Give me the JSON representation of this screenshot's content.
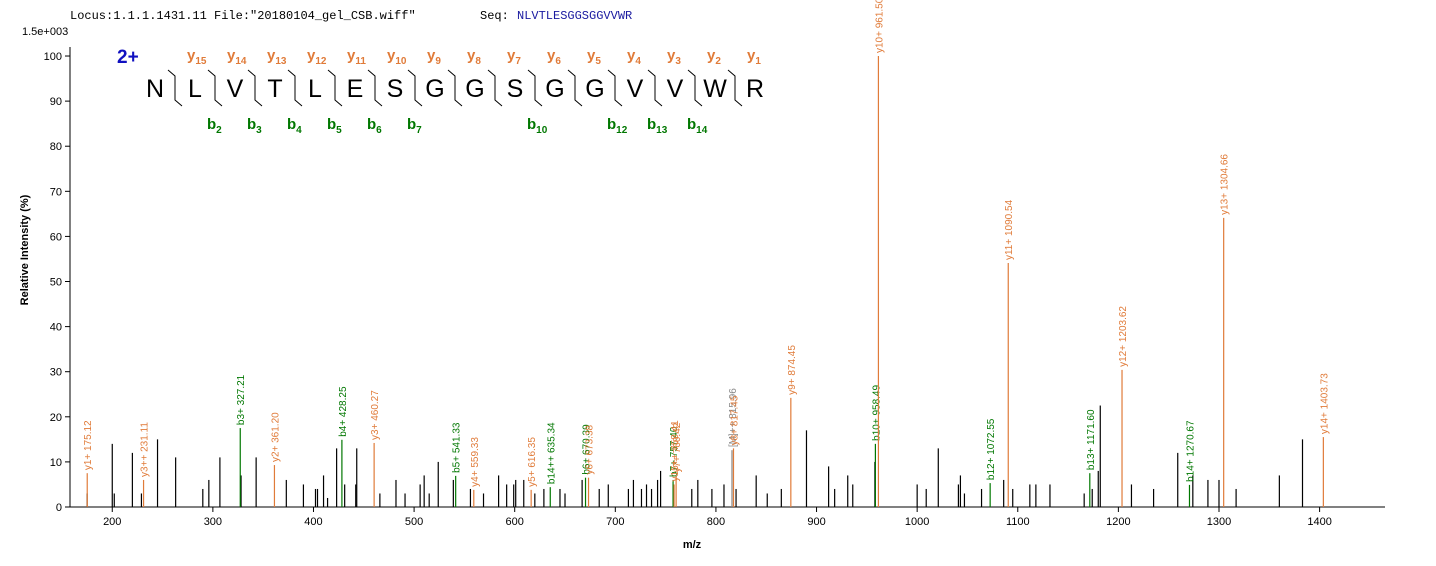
{
  "header": {
    "locus": "Locus:1.1.1.1431.11 File:\"20180104_gel_CSB.wiff\"",
    "seq_label": "Seq:",
    "seq": "NLVTLESGGSGGVVWR",
    "max_intensity": "1.5e+003"
  },
  "sequence": {
    "charge": "2+",
    "residues": [
      "N",
      "L",
      "V",
      "T",
      "L",
      "E",
      "S",
      "G",
      "G",
      "S",
      "G",
      "G",
      "V",
      "V",
      "W",
      "R"
    ],
    "y_letter": "y",
    "y_ions": [
      15,
      14,
      13,
      12,
      11,
      10,
      9,
      8,
      7,
      6,
      5,
      4,
      3,
      2,
      1
    ],
    "y_color": "#e07b39",
    "b_letter": "b",
    "b_ions": [
      2,
      3,
      4,
      5,
      6,
      7,
      10,
      12,
      13,
      14
    ],
    "b_color": "#007700"
  },
  "chart_data": {
    "type": "spectrum",
    "xlabel": "m/z",
    "ylabel": "Relative  Intensity (%)",
    "xlim": [
      158,
      1465
    ],
    "ylim": [
      0,
      102
    ],
    "xticks": [
      200,
      300,
      400,
      500,
      600,
      700,
      800,
      900,
      1000,
      1100,
      1200,
      1300,
      1400
    ],
    "yticks": [
      0,
      10,
      20,
      30,
      40,
      50,
      60,
      70,
      80,
      90,
      100
    ],
    "series": [
      {
        "color": "#e07b39",
        "x": [
          175.12,
          231.11,
          361.2,
          460.27,
          559.33,
          616.35,
          673.38,
          758.41,
          760.42,
          817.45,
          874.45,
          961.5,
          1090.54,
          1203.62,
          1304.66,
          1403.73
        ],
        "values": [
          7.5,
          6,
          9.3,
          14.2,
          3.8,
          3.8,
          6.5,
          5,
          7,
          13,
          24.2,
          100,
          54.1,
          30.4,
          64.1,
          15.5
        ],
        "labels": [
          "y1+ 175.12",
          "y3++ 231.11",
          "y2+ 361.20",
          "y3+ 460.27",
          "y4+ 559.33",
          "y5+ 616.35",
          "y6+ 673.38",
          "y15++ 758.41",
          "y7+ 760.42",
          "y8+ 817.45",
          "y9+ 874.45",
          "y10+ 961.50",
          "y11+ 1090.54",
          "y12+ 1203.62",
          "y13+ 1304.66",
          "y14+ 1403.73"
        ]
      },
      {
        "color": "#007700",
        "x": [
          327.21,
          428.25,
          541.33,
          635.34,
          670.39,
          757.4,
          958.49,
          1072.55,
          1171.6,
          1270.67
        ],
        "values": [
          17.5,
          14.9,
          6.9,
          4.4,
          6.5,
          6,
          14,
          5.3,
          7.5,
          4.9
        ],
        "labels": [
          "b3+ 327.21",
          "b4+ 428.25",
          "b5+ 541.33",
          "b14++ 635.34",
          "b6+ 670.39",
          "b7+ 757.40",
          "b10+ 958.49",
          "b12+ 1072.55",
          "b13+ 1171.60",
          "b14+ 1270.67"
        ]
      },
      {
        "color": "#888888",
        "x": [
          815.96
        ],
        "values": [
          12.6
        ],
        "labels": [
          "[M]++ 815.96"
        ]
      },
      {
        "color": "#000000",
        "x": [
          175,
          200,
          202,
          220,
          229,
          245,
          263,
          290,
          296,
          307,
          328,
          343,
          373,
          390,
          402,
          404,
          410,
          414,
          423,
          431,
          442,
          443,
          466,
          482,
          491,
          506,
          510,
          515,
          524,
          539,
          556,
          569,
          584,
          592,
          599,
          601,
          609,
          620,
          629,
          645,
          650,
          667,
          684,
          693,
          713,
          718,
          726,
          731,
          736,
          742,
          745,
          776,
          782,
          796,
          808,
          820,
          840,
          851,
          865,
          890,
          912,
          918,
          931,
          936,
          958,
          1000,
          1009,
          1021,
          1041,
          1043,
          1047,
          1064,
          1086,
          1095,
          1112,
          1118,
          1132,
          1166,
          1174,
          1180,
          1182,
          1213,
          1235,
          1259,
          1274,
          1289,
          1300,
          1317,
          1360,
          1383
        ],
        "values": [
          3,
          14,
          3,
          12,
          3,
          15,
          11,
          4,
          6,
          11,
          7,
          11,
          6,
          5,
          4,
          4,
          7,
          2,
          13,
          5,
          5,
          13,
          3,
          6,
          3,
          5,
          7,
          3,
          10,
          6,
          4,
          3,
          7,
          5,
          5,
          6,
          6,
          3,
          4,
          4,
          3,
          6,
          4,
          5,
          4,
          6,
          4,
          5,
          4,
          6,
          8,
          4,
          6,
          4,
          5,
          4,
          7,
          3,
          4,
          17,
          9,
          4,
          7,
          5,
          10,
          5,
          4,
          13,
          5,
          7,
          3,
          4,
          6,
          4,
          5,
          5,
          5,
          3,
          4,
          8,
          22.5,
          5,
          4,
          12,
          7,
          6,
          6,
          4,
          7,
          15
        ]
      }
    ]
  }
}
